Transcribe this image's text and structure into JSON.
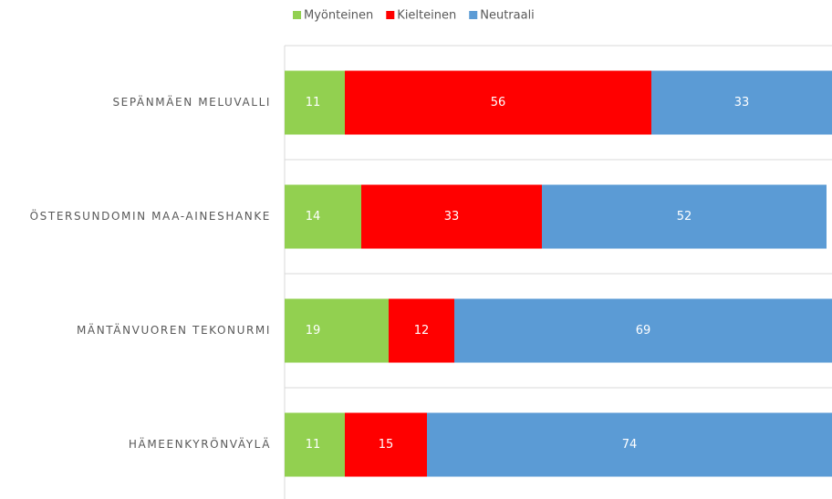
{
  "chart_data": {
    "type": "stacked_bar_horizontal",
    "categories": [
      "SEPÄNMÄEN MELUVALLI",
      "ÖSTERSUNDOMIN MAA-AINESHANKE",
      "MÄNTÄNVUOREN TEKONURMI",
      "HÄMEENKYRÖNVÄYLÄ"
    ],
    "series": [
      {
        "name": "Myönteinen",
        "color": "#92d050",
        "values": [
          11,
          14,
          19,
          11
        ]
      },
      {
        "name": "Kielteinen",
        "color": "#ff0000",
        "values": [
          56,
          33,
          12,
          15
        ]
      },
      {
        "name": "Neutraali",
        "color": "#5b9bd5",
        "values": [
          33,
          52,
          69,
          74
        ]
      }
    ],
    "xlim": [
      0,
      100
    ],
    "legend": "top"
  }
}
